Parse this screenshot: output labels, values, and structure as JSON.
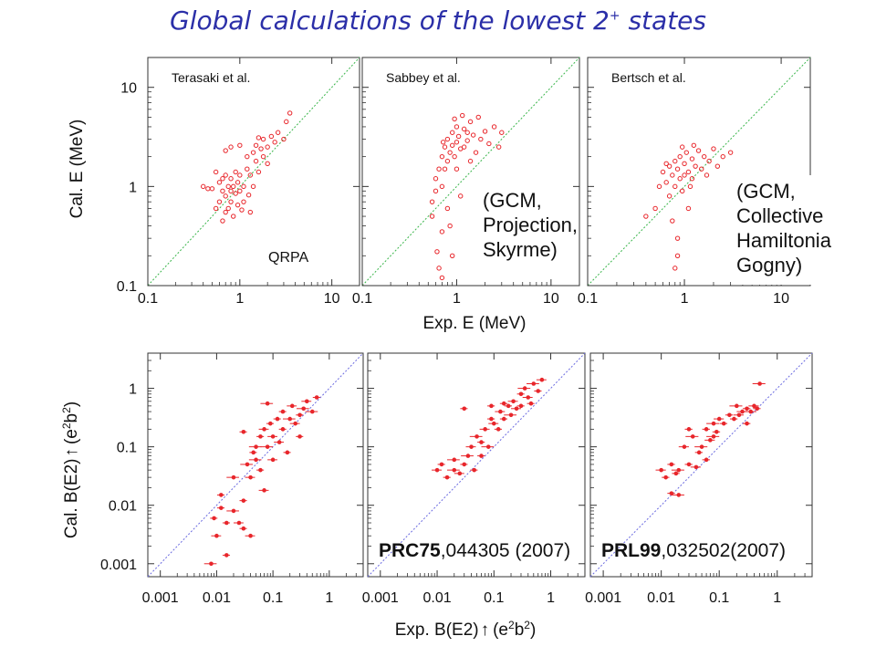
{
  "slide": {
    "title_main": "Global calculations of the lowest 2",
    "title_sup": "+",
    "title_tail": " states"
  },
  "chart_data": [
    {
      "type": "scatter",
      "row": "top",
      "axis_scale": "log",
      "xlim": [
        0.1,
        20
      ],
      "ylim": [
        0.1,
        20
      ],
      "x_ticks": [
        "0.1",
        "1",
        "10"
      ],
      "y_ticks": [
        "0.1",
        "1",
        "10"
      ],
      "xlabel": "Exp. E (MeV)",
      "ylabel": "Cal. E (MeV)",
      "grid": false,
      "reference_line": "y=x",
      "marker_color": "#e8262b",
      "line_color": "#39b54a",
      "panels": [
        {
          "label": "Terasaki et al.",
          "method": [
            "QRPA"
          ],
          "points": [
            [
              0.4,
              1.0
            ],
            [
              0.45,
              0.95
            ],
            [
              0.5,
              0.95
            ],
            [
              0.55,
              0.6
            ],
            [
              0.6,
              0.7
            ],
            [
              0.6,
              1.1
            ],
            [
              0.65,
              0.9
            ],
            [
              0.65,
              0.45
            ],
            [
              0.7,
              1.3
            ],
            [
              0.7,
              0.8
            ],
            [
              0.7,
              0.55
            ],
            [
              0.75,
              1.0
            ],
            [
              0.75,
              0.6
            ],
            [
              0.8,
              1.2
            ],
            [
              0.8,
              0.9
            ],
            [
              0.8,
              0.7
            ],
            [
              0.85,
              1.0
            ],
            [
              0.85,
              0.5
            ],
            [
              0.9,
              1.4
            ],
            [
              0.9,
              0.85
            ],
            [
              0.95,
              1.1
            ],
            [
              0.95,
              0.65
            ],
            [
              1.0,
              1.3
            ],
            [
              1.0,
              0.9
            ],
            [
              1.1,
              1.0
            ],
            [
              1.1,
              0.7
            ],
            [
              1.2,
              1.5
            ],
            [
              1.2,
              2.0
            ],
            [
              1.3,
              1.3
            ],
            [
              1.3,
              0.55
            ],
            [
              1.4,
              2.2
            ],
            [
              1.4,
              1.0
            ],
            [
              1.5,
              1.8
            ],
            [
              1.5,
              2.6
            ],
            [
              1.6,
              1.4
            ],
            [
              1.7,
              2.4
            ],
            [
              1.8,
              2.0
            ],
            [
              1.8,
              3.0
            ],
            [
              2.0,
              2.5
            ],
            [
              2.0,
              1.7
            ],
            [
              2.2,
              3.2
            ],
            [
              2.4,
              2.8
            ],
            [
              2.6,
              3.5
            ],
            [
              3.0,
              3.0
            ],
            [
              3.2,
              4.5
            ],
            [
              3.5,
              5.5
            ],
            [
              0.7,
              2.3
            ],
            [
              0.8,
              2.5
            ],
            [
              1.0,
              2.6
            ],
            [
              1.6,
              3.1
            ],
            [
              0.55,
              1.4
            ],
            [
              0.65,
              1.2
            ],
            [
              1.05,
              0.58
            ],
            [
              1.25,
              0.82
            ]
          ]
        },
        {
          "label": "Sabbey et al.",
          "method": [
            "(GCM,",
            "Projection,",
            "Skyrme)"
          ],
          "points": [
            [
              0.55,
              0.5
            ],
            [
              0.55,
              0.7
            ],
            [
              0.6,
              0.9
            ],
            [
              0.6,
              1.2
            ],
            [
              0.65,
              1.5
            ],
            [
              0.7,
              1.0
            ],
            [
              0.7,
              2.0
            ],
            [
              0.7,
              0.35
            ],
            [
              0.75,
              2.5
            ],
            [
              0.75,
              1.5
            ],
            [
              0.8,
              3.0
            ],
            [
              0.8,
              1.8
            ],
            [
              0.8,
              0.6
            ],
            [
              0.85,
              2.2
            ],
            [
              0.85,
              0.4
            ],
            [
              0.9,
              3.5
            ],
            [
              0.9,
              2.6
            ],
            [
              0.9,
              0.2
            ],
            [
              0.95,
              2.0
            ],
            [
              1.0,
              4.0
            ],
            [
              1.0,
              2.8
            ],
            [
              1.0,
              1.5
            ],
            [
              1.05,
              3.2
            ],
            [
              1.1,
              2.4
            ],
            [
              1.1,
              0.8
            ],
            [
              1.2,
              3.8
            ],
            [
              1.2,
              2.5
            ],
            [
              1.3,
              2.9
            ],
            [
              1.4,
              4.5
            ],
            [
              1.4,
              1.8
            ],
            [
              1.5,
              3.3
            ],
            [
              1.6,
              2.2
            ],
            [
              1.7,
              5.0
            ],
            [
              1.8,
              3.0
            ],
            [
              2.0,
              3.6
            ],
            [
              2.2,
              2.7
            ],
            [
              2.5,
              4.0
            ],
            [
              2.8,
              2.5
            ],
            [
              3.0,
              3.5
            ],
            [
              0.65,
              0.15
            ],
            [
              0.7,
              0.12
            ],
            [
              0.62,
              0.22
            ],
            [
              0.95,
              4.8
            ],
            [
              1.15,
              5.2
            ],
            [
              0.72,
              2.8
            ],
            [
              1.3,
              3.5
            ]
          ]
        },
        {
          "label": "Bertsch et al.",
          "method": [
            "(GCM,",
            "Collective",
            "Hamiltonia",
            "Gogny)"
          ],
          "points": [
            [
              0.4,
              0.5
            ],
            [
              0.5,
              0.6
            ],
            [
              0.55,
              1.0
            ],
            [
              0.6,
              1.4
            ],
            [
              0.65,
              1.1
            ],
            [
              0.7,
              1.6
            ],
            [
              0.7,
              0.8
            ],
            [
              0.75,
              1.3
            ],
            [
              0.75,
              0.45
            ],
            [
              0.8,
              1.8
            ],
            [
              0.8,
              1.0
            ],
            [
              0.85,
              1.5
            ],
            [
              0.85,
              0.3
            ],
            [
              0.9,
              2.0
            ],
            [
              0.9,
              1.2
            ],
            [
              0.95,
              0.9
            ],
            [
              1.0,
              1.7
            ],
            [
              1.0,
              1.3
            ],
            [
              1.05,
              2.2
            ],
            [
              1.1,
              1.4
            ],
            [
              1.1,
              0.6
            ],
            [
              1.2,
              1.9
            ],
            [
              1.2,
              1.2
            ],
            [
              1.3,
              1.6
            ],
            [
              1.4,
              2.3
            ],
            [
              1.5,
              1.5
            ],
            [
              1.6,
              2.0
            ],
            [
              1.8,
              1.8
            ],
            [
              2.0,
              2.4
            ],
            [
              2.2,
              1.6
            ],
            [
              2.5,
              2.0
            ],
            [
              3.0,
              2.2
            ],
            [
              0.8,
              0.15
            ],
            [
              0.85,
              0.2
            ],
            [
              0.95,
              2.5
            ],
            [
              1.15,
              1.0
            ],
            [
              0.65,
              1.7
            ],
            [
              1.25,
              2.6
            ],
            [
              1.7,
              1.3
            ]
          ]
        }
      ]
    },
    {
      "type": "scatter",
      "row": "bottom",
      "axis_scale": "log",
      "xlim": [
        0.0006,
        4
      ],
      "ylim": [
        0.0006,
        4
      ],
      "x_ticks": [
        "0.001",
        "0.01",
        "0.1",
        "1"
      ],
      "y_ticks": [
        "0.001",
        "0.01",
        "0.1",
        "1"
      ],
      "xlabel": "Exp. B(E2)↑ (e2b2)",
      "ylabel": "Cal. B(E2)↑ (e2b2)",
      "grid": false,
      "reference_line": "y=x",
      "error_bars": "horizontal",
      "marker_color": "#e8262b",
      "line_color": "#6a6ae0",
      "panels": [
        {
          "ref_bold": "",
          "ref_rest": "",
          "points": [
            [
              0.008,
              0.001
            ],
            [
              0.01,
              0.003
            ],
            [
              0.009,
              0.006
            ],
            [
              0.012,
              0.009
            ],
            [
              0.015,
              0.005
            ],
            [
              0.02,
              0.008
            ],
            [
              0.02,
              0.03
            ],
            [
              0.025,
              0.005
            ],
            [
              0.03,
              0.004
            ],
            [
              0.03,
              0.012
            ],
            [
              0.035,
              0.05
            ],
            [
              0.04,
              0.03
            ],
            [
              0.04,
              0.003
            ],
            [
              0.045,
              0.08
            ],
            [
              0.05,
              0.06
            ],
            [
              0.05,
              0.1
            ],
            [
              0.06,
              0.04
            ],
            [
              0.06,
              0.15
            ],
            [
              0.07,
              0.2
            ],
            [
              0.07,
              0.018
            ],
            [
              0.08,
              0.1
            ],
            [
              0.09,
              0.25
            ],
            [
              0.1,
              0.15
            ],
            [
              0.1,
              0.06
            ],
            [
              0.12,
              0.3
            ],
            [
              0.13,
              0.12
            ],
            [
              0.15,
              0.2
            ],
            [
              0.15,
              0.4
            ],
            [
              0.18,
              0.08
            ],
            [
              0.2,
              0.3
            ],
            [
              0.22,
              0.5
            ],
            [
              0.25,
              0.25
            ],
            [
              0.3,
              0.35
            ],
            [
              0.3,
              0.15
            ],
            [
              0.35,
              0.45
            ],
            [
              0.4,
              0.6
            ],
            [
              0.5,
              0.4
            ],
            [
              0.6,
              0.7
            ],
            [
              0.03,
              0.18
            ],
            [
              0.08,
              0.55
            ],
            [
              0.015,
              0.0014
            ],
            [
              0.012,
              0.015
            ]
          ]
        },
        {
          "ref_bold": "PRC75",
          "ref_rest": ",044305 (2007)",
          "points": [
            [
              0.01,
              0.04
            ],
            [
              0.012,
              0.05
            ],
            [
              0.015,
              0.03
            ],
            [
              0.02,
              0.06
            ],
            [
              0.02,
              0.04
            ],
            [
              0.025,
              0.035
            ],
            [
              0.03,
              0.05
            ],
            [
              0.035,
              0.07
            ],
            [
              0.04,
              0.1
            ],
            [
              0.045,
              0.04
            ],
            [
              0.05,
              0.15
            ],
            [
              0.06,
              0.12
            ],
            [
              0.07,
              0.2
            ],
            [
              0.08,
              0.1
            ],
            [
              0.09,
              0.3
            ],
            [
              0.1,
              0.25
            ],
            [
              0.12,
              0.2
            ],
            [
              0.13,
              0.4
            ],
            [
              0.15,
              0.3
            ],
            [
              0.18,
              0.5
            ],
            [
              0.2,
              0.35
            ],
            [
              0.22,
              0.6
            ],
            [
              0.25,
              0.45
            ],
            [
              0.3,
              0.8
            ],
            [
              0.3,
              0.5
            ],
            [
              0.35,
              1.0
            ],
            [
              0.4,
              0.7
            ],
            [
              0.45,
              0.55
            ],
            [
              0.5,
              1.2
            ],
            [
              0.6,
              0.9
            ],
            [
              0.03,
              0.45
            ],
            [
              0.09,
              0.5
            ],
            [
              0.7,
              1.4
            ],
            [
              0.06,
              0.07
            ],
            [
              0.15,
              0.55
            ]
          ]
        },
        {
          "ref_bold": "PRL99",
          "ref_rest": ",032502(2007)",
          "points": [
            [
              0.01,
              0.04
            ],
            [
              0.012,
              0.03
            ],
            [
              0.015,
              0.05
            ],
            [
              0.018,
              0.035
            ],
            [
              0.02,
              0.04
            ],
            [
              0.025,
              0.1
            ],
            [
              0.03,
              0.05
            ],
            [
              0.035,
              0.15
            ],
            [
              0.04,
              0.045
            ],
            [
              0.045,
              0.08
            ],
            [
              0.05,
              0.1
            ],
            [
              0.06,
              0.2
            ],
            [
              0.07,
              0.13
            ],
            [
              0.08,
              0.25
            ],
            [
              0.09,
              0.18
            ],
            [
              0.1,
              0.3
            ],
            [
              0.12,
              0.25
            ],
            [
              0.15,
              0.35
            ],
            [
              0.18,
              0.3
            ],
            [
              0.2,
              0.5
            ],
            [
              0.22,
              0.35
            ],
            [
              0.25,
              0.4
            ],
            [
              0.3,
              0.45
            ],
            [
              0.35,
              0.4
            ],
            [
              0.4,
              0.5
            ],
            [
              0.45,
              0.45
            ],
            [
              0.5,
              1.2
            ],
            [
              0.03,
              0.2
            ],
            [
              0.06,
              0.06
            ],
            [
              0.02,
              0.015
            ],
            [
              0.015,
              0.016
            ],
            [
              0.08,
              0.15
            ],
            [
              0.3,
              0.25
            ]
          ]
        }
      ]
    }
  ]
}
